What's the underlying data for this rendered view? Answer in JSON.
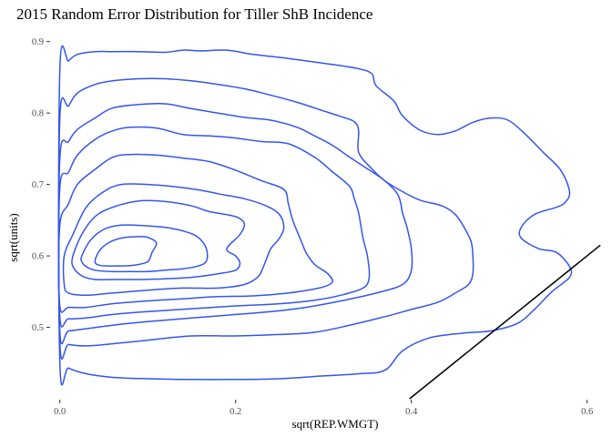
{
  "chart_data": {
    "type": "line",
    "title": "2015 Random Error Distribution for Tiller ShB Incidence",
    "xlabel": "sqrt(REP.WMGT)",
    "ylabel": "sqrt(units)",
    "xlim": [
      -0.01,
      0.62
    ],
    "ylim": [
      0.4,
      0.92
    ],
    "x_ticks": [
      0.0,
      0.2,
      0.4,
      0.6
    ],
    "x_tick_labels": [
      "0.0",
      "0.2",
      "0.4",
      "0.6"
    ],
    "y_ticks": [
      0.5,
      0.6,
      0.7,
      0.8,
      0.9
    ],
    "y_tick_labels": [
      "0.5",
      "0.6",
      "0.7",
      "0.8",
      "0.9"
    ],
    "grid": false,
    "contour_color": "#3355ee",
    "line_color": "#000000",
    "contours": [
      {
        "points": [
          [
            0.0,
            0.86
          ],
          [
            0.01,
            0.873
          ],
          [
            0.02,
            0.882
          ],
          [
            0.04,
            0.886
          ],
          [
            0.06,
            0.886
          ],
          [
            0.09,
            0.886
          ],
          [
            0.12,
            0.885
          ],
          [
            0.14,
            0.888
          ],
          [
            0.16,
            0.887
          ],
          [
            0.19,
            0.888
          ],
          [
            0.22,
            0.882
          ],
          [
            0.25,
            0.878
          ],
          [
            0.28,
            0.873
          ],
          [
            0.31,
            0.868
          ],
          [
            0.34,
            0.862
          ],
          [
            0.355,
            0.855
          ],
          [
            0.36,
            0.838
          ],
          [
            0.38,
            0.817
          ],
          [
            0.39,
            0.796
          ],
          [
            0.41,
            0.776
          ],
          [
            0.43,
            0.77
          ],
          [
            0.45,
            0.775
          ],
          [
            0.47,
            0.787
          ],
          [
            0.49,
            0.793
          ],
          [
            0.51,
            0.79
          ],
          [
            0.53,
            0.77
          ],
          [
            0.55,
            0.745
          ],
          [
            0.57,
            0.72
          ],
          [
            0.58,
            0.69
          ],
          [
            0.575,
            0.675
          ],
          [
            0.565,
            0.668
          ],
          [
            0.54,
            0.658
          ],
          [
            0.525,
            0.64
          ],
          [
            0.525,
            0.625
          ],
          [
            0.545,
            0.61
          ],
          [
            0.565,
            0.605
          ],
          [
            0.58,
            0.585
          ],
          [
            0.58,
            0.57
          ],
          [
            0.56,
            0.55
          ],
          [
            0.54,
            0.525
          ],
          [
            0.52,
            0.505
          ],
          [
            0.49,
            0.495
          ],
          [
            0.46,
            0.492
          ],
          [
            0.42,
            0.485
          ],
          [
            0.39,
            0.467
          ],
          [
            0.37,
            0.44
          ],
          [
            0.34,
            0.435
          ],
          [
            0.3,
            0.432
          ],
          [
            0.25,
            0.428
          ],
          [
            0.2,
            0.427
          ],
          [
            0.15,
            0.427
          ],
          [
            0.1,
            0.428
          ],
          [
            0.06,
            0.43
          ],
          [
            0.03,
            0.435
          ],
          [
            0.01,
            0.443
          ],
          [
            0.0,
            0.452
          ]
        ]
      },
      {
        "points": [
          [
            0.0,
            0.793
          ],
          [
            0.01,
            0.81
          ],
          [
            0.02,
            0.828
          ],
          [
            0.04,
            0.84
          ],
          [
            0.06,
            0.845
          ],
          [
            0.09,
            0.848
          ],
          [
            0.12,
            0.848
          ],
          [
            0.15,
            0.845
          ],
          [
            0.18,
            0.84
          ],
          [
            0.21,
            0.834
          ],
          [
            0.24,
            0.825
          ],
          [
            0.27,
            0.815
          ],
          [
            0.3,
            0.803
          ],
          [
            0.32,
            0.795
          ],
          [
            0.335,
            0.788
          ],
          [
            0.34,
            0.775
          ],
          [
            0.34,
            0.745
          ],
          [
            0.355,
            0.722
          ],
          [
            0.37,
            0.705
          ],
          [
            0.39,
            0.69
          ],
          [
            0.41,
            0.678
          ],
          [
            0.435,
            0.67
          ],
          [
            0.45,
            0.658
          ],
          [
            0.46,
            0.64
          ],
          [
            0.468,
            0.62
          ],
          [
            0.47,
            0.6
          ],
          [
            0.47,
            0.575
          ],
          [
            0.465,
            0.56
          ],
          [
            0.45,
            0.548
          ],
          [
            0.43,
            0.535
          ],
          [
            0.4,
            0.525
          ],
          [
            0.37,
            0.515
          ],
          [
            0.33,
            0.503
          ],
          [
            0.29,
            0.493
          ],
          [
            0.25,
            0.49
          ],
          [
            0.2,
            0.488
          ],
          [
            0.15,
            0.488
          ],
          [
            0.1,
            0.482
          ],
          [
            0.06,
            0.477
          ],
          [
            0.03,
            0.474
          ],
          [
            0.01,
            0.476
          ],
          [
            0.0,
            0.48
          ]
        ]
      },
      {
        "points": [
          [
            0.0,
            0.736
          ],
          [
            0.01,
            0.76
          ],
          [
            0.02,
            0.777
          ],
          [
            0.04,
            0.793
          ],
          [
            0.06,
            0.807
          ],
          [
            0.09,
            0.812
          ],
          [
            0.12,
            0.813
          ],
          [
            0.15,
            0.806
          ],
          [
            0.18,
            0.8
          ],
          [
            0.21,
            0.794
          ],
          [
            0.24,
            0.79
          ],
          [
            0.27,
            0.78
          ],
          [
            0.29,
            0.768
          ],
          [
            0.31,
            0.755
          ],
          [
            0.33,
            0.738
          ],
          [
            0.35,
            0.722
          ],
          [
            0.37,
            0.705
          ],
          [
            0.385,
            0.685
          ],
          [
            0.39,
            0.66
          ],
          [
            0.395,
            0.64
          ],
          [
            0.4,
            0.61
          ],
          [
            0.4,
            0.58
          ],
          [
            0.39,
            0.56
          ],
          [
            0.36,
            0.548
          ],
          [
            0.32,
            0.537
          ],
          [
            0.28,
            0.528
          ],
          [
            0.24,
            0.522
          ],
          [
            0.2,
            0.518
          ],
          [
            0.15,
            0.513
          ],
          [
            0.1,
            0.508
          ],
          [
            0.06,
            0.503
          ],
          [
            0.03,
            0.498
          ],
          [
            0.01,
            0.495
          ],
          [
            0.0,
            0.495
          ]
        ]
      },
      {
        "points": [
          [
            0.0,
            0.695
          ],
          [
            0.01,
            0.717
          ],
          [
            0.02,
            0.741
          ],
          [
            0.04,
            0.763
          ],
          [
            0.06,
            0.775
          ],
          [
            0.08,
            0.78
          ],
          [
            0.11,
            0.779
          ],
          [
            0.14,
            0.77
          ],
          [
            0.17,
            0.768
          ],
          [
            0.2,
            0.765
          ],
          [
            0.23,
            0.76
          ],
          [
            0.26,
            0.757
          ],
          [
            0.29,
            0.738
          ],
          [
            0.31,
            0.718
          ],
          [
            0.33,
            0.697
          ],
          [
            0.335,
            0.68
          ],
          [
            0.34,
            0.66
          ],
          [
            0.345,
            0.625
          ],
          [
            0.35,
            0.6
          ],
          [
            0.352,
            0.57
          ],
          [
            0.345,
            0.555
          ],
          [
            0.32,
            0.545
          ],
          [
            0.29,
            0.538
          ],
          [
            0.25,
            0.533
          ],
          [
            0.2,
            0.53
          ],
          [
            0.15,
            0.526
          ],
          [
            0.1,
            0.522
          ],
          [
            0.06,
            0.518
          ],
          [
            0.03,
            0.513
          ],
          [
            0.01,
            0.512
          ],
          [
            0.0,
            0.515
          ]
        ]
      },
      {
        "points": [
          [
            0.0,
            0.643
          ],
          [
            0.01,
            0.673
          ],
          [
            0.02,
            0.7
          ],
          [
            0.04,
            0.721
          ],
          [
            0.06,
            0.738
          ],
          [
            0.08,
            0.742
          ],
          [
            0.11,
            0.741
          ],
          [
            0.14,
            0.737
          ],
          [
            0.17,
            0.732
          ],
          [
            0.2,
            0.72
          ],
          [
            0.23,
            0.705
          ],
          [
            0.255,
            0.693
          ],
          [
            0.26,
            0.673
          ],
          [
            0.265,
            0.65
          ],
          [
            0.275,
            0.62
          ],
          [
            0.28,
            0.605
          ],
          [
            0.29,
            0.588
          ],
          [
            0.305,
            0.575
          ],
          [
            0.31,
            0.563
          ],
          [
            0.295,
            0.555
          ],
          [
            0.26,
            0.548
          ],
          [
            0.22,
            0.544
          ],
          [
            0.18,
            0.543
          ],
          [
            0.14,
            0.54
          ],
          [
            0.1,
            0.537
          ],
          [
            0.06,
            0.533
          ],
          [
            0.03,
            0.528
          ],
          [
            0.01,
            0.528
          ],
          [
            0.0,
            0.53
          ]
        ]
      },
      {
        "points": [
          [
            0.005,
            0.6
          ],
          [
            0.015,
            0.63
          ],
          [
            0.03,
            0.668
          ],
          [
            0.05,
            0.69
          ],
          [
            0.07,
            0.7
          ],
          [
            0.1,
            0.7
          ],
          [
            0.13,
            0.697
          ],
          [
            0.16,
            0.692
          ],
          [
            0.18,
            0.687
          ],
          [
            0.21,
            0.68
          ],
          [
            0.235,
            0.67
          ],
          [
            0.25,
            0.658
          ],
          [
            0.255,
            0.64
          ],
          [
            0.25,
            0.625
          ],
          [
            0.24,
            0.61
          ],
          [
            0.235,
            0.595
          ],
          [
            0.23,
            0.58
          ],
          [
            0.225,
            0.57
          ],
          [
            0.21,
            0.56
          ],
          [
            0.18,
            0.555
          ],
          [
            0.14,
            0.555
          ],
          [
            0.1,
            0.552
          ],
          [
            0.06,
            0.548
          ],
          [
            0.03,
            0.545
          ],
          [
            0.01,
            0.548
          ],
          [
            0.005,
            0.56
          ]
        ]
      },
      {
        "points": [
          [
            0.015,
            0.6
          ],
          [
            0.025,
            0.63
          ],
          [
            0.04,
            0.655
          ],
          [
            0.06,
            0.668
          ],
          [
            0.09,
            0.677
          ],
          [
            0.12,
            0.676
          ],
          [
            0.15,
            0.67
          ],
          [
            0.17,
            0.662
          ],
          [
            0.2,
            0.655
          ],
          [
            0.21,
            0.645
          ],
          [
            0.205,
            0.63
          ],
          [
            0.19,
            0.61
          ],
          [
            0.2,
            0.6
          ],
          [
            0.205,
            0.59
          ],
          [
            0.2,
            0.58
          ],
          [
            0.18,
            0.575
          ],
          [
            0.15,
            0.57
          ],
          [
            0.12,
            0.568
          ],
          [
            0.09,
            0.567
          ],
          [
            0.06,
            0.567
          ],
          [
            0.04,
            0.567
          ],
          [
            0.025,
            0.572
          ],
          [
            0.015,
            0.585
          ]
        ]
      },
      {
        "points": [
          [
            0.025,
            0.6
          ],
          [
            0.035,
            0.622
          ],
          [
            0.05,
            0.637
          ],
          [
            0.07,
            0.643
          ],
          [
            0.1,
            0.642
          ],
          [
            0.12,
            0.64
          ],
          [
            0.14,
            0.635
          ],
          [
            0.155,
            0.628
          ],
          [
            0.165,
            0.615
          ],
          [
            0.168,
            0.6
          ],
          [
            0.165,
            0.59
          ],
          [
            0.155,
            0.585
          ],
          [
            0.14,
            0.582
          ],
          [
            0.12,
            0.58
          ],
          [
            0.1,
            0.578
          ],
          [
            0.08,
            0.578
          ],
          [
            0.06,
            0.578
          ],
          [
            0.04,
            0.58
          ],
          [
            0.03,
            0.585
          ],
          [
            0.025,
            0.592
          ]
        ]
      },
      {
        "points": [
          [
            0.04,
            0.592
          ],
          [
            0.045,
            0.607
          ],
          [
            0.055,
            0.618
          ],
          [
            0.07,
            0.625
          ],
          [
            0.09,
            0.627
          ],
          [
            0.1,
            0.626
          ],
          [
            0.11,
            0.618
          ],
          [
            0.105,
            0.605
          ],
          [
            0.1,
            0.592
          ],
          [
            0.085,
            0.587
          ],
          [
            0.07,
            0.586
          ],
          [
            0.055,
            0.586
          ],
          [
            0.045,
            0.587
          ]
        ]
      }
    ],
    "reference_line": [
      [
        0.398,
        0.4
      ],
      [
        0.615,
        0.615
      ]
    ]
  }
}
